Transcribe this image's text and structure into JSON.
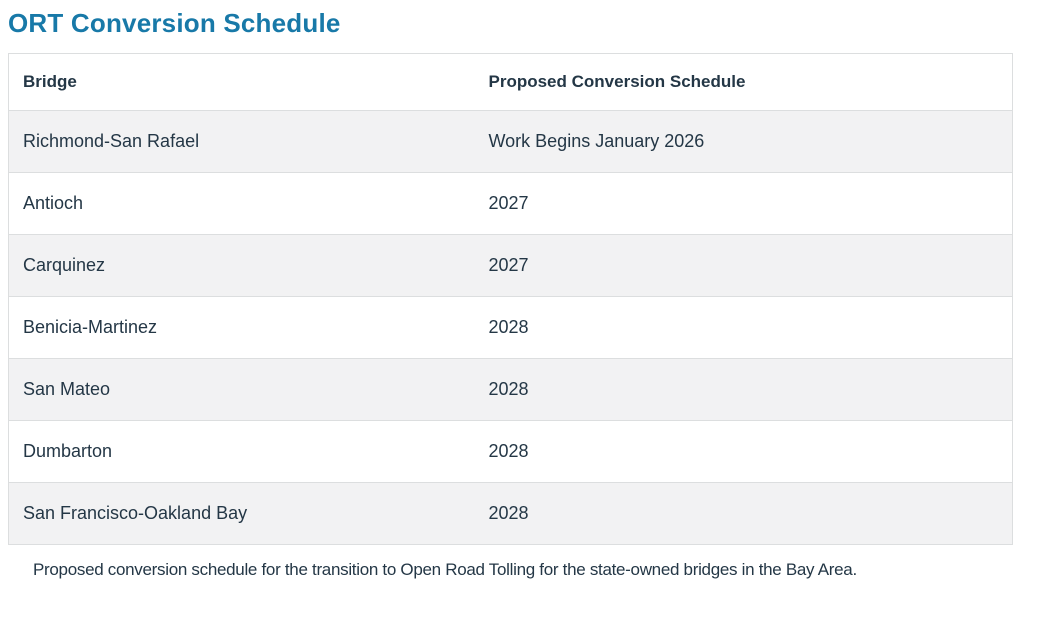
{
  "page": {
    "title": "ORT Conversion Schedule"
  },
  "table": {
    "columns": {
      "bridge": "Bridge",
      "schedule": "Proposed Conversion Schedule"
    },
    "rows": [
      {
        "bridge": "Richmond-San Rafael",
        "schedule": "Work Begins January 2026"
      },
      {
        "bridge": "Antioch",
        "schedule": "2027"
      },
      {
        "bridge": "Carquinez",
        "schedule": "2027"
      },
      {
        "bridge": "Benicia-Martinez",
        "schedule": "2028"
      },
      {
        "bridge": "San Mateo",
        "schedule": "2028"
      },
      {
        "bridge": "Dumbarton",
        "schedule": "2028"
      },
      {
        "bridge": "San Francisco-Oakland Bay",
        "schedule": "2028"
      }
    ]
  },
  "caption": "Proposed conversion schedule for the transition to Open Road Tolling for the state-owned bridges in the Bay Area.",
  "colors": {
    "title": "#1879a8",
    "text": "#243746",
    "row_alt_bg": "#f2f2f3",
    "border": "#dcdedf"
  },
  "chart_data": {
    "type": "table",
    "title": "ORT Conversion Schedule",
    "columns": [
      "Bridge",
      "Proposed Conversion Schedule"
    ],
    "rows": [
      [
        "Richmond-San Rafael",
        "Work Begins January 2026"
      ],
      [
        "Antioch",
        "2027"
      ],
      [
        "Carquinez",
        "2027"
      ],
      [
        "Benicia-Martinez",
        "2028"
      ],
      [
        "San Mateo",
        "2028"
      ],
      [
        "Dumbarton",
        "2028"
      ],
      [
        "San Francisco-Oakland Bay",
        "2028"
      ]
    ]
  }
}
